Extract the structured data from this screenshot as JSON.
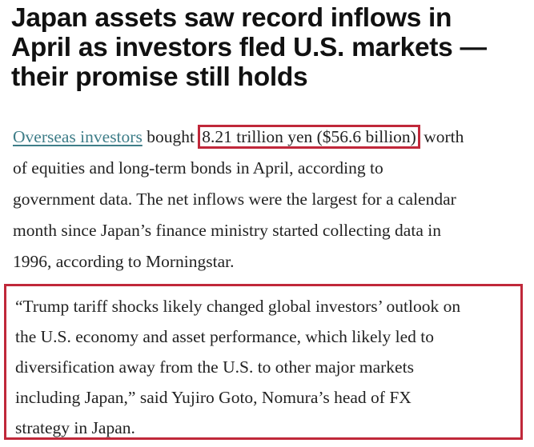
{
  "headline": {
    "lines": [
      "Japan assets saw record inflows in",
      "April as investors fled U.S. markets —",
      "their promise still holds"
    ]
  },
  "paragraph": {
    "link_text": "Overseas investors",
    "line1_after_link": " bought ",
    "highlight": "8.21 trillion yen ($56.6 billion)",
    "line1_end": " worth",
    "lines": [
      "of equities and long-term bonds in April, according to",
      "government data. The net inflows were the largest for a calendar",
      "month since Japan’s finance ministry started collecting data in",
      "1996, according to Morningstar."
    ]
  },
  "quote": {
    "lines": [
      "“Trump tariff shocks likely changed global investors’ outlook on",
      "the U.S. economy and asset performance, which likely led to",
      "diversification away from the U.S. to other major markets",
      "including Japan,” said Yujiro Goto, Nomura’s head of FX",
      "strategy in Japan."
    ]
  },
  "colors": {
    "link": "#3e7d88",
    "highlight_border": "#c0283a",
    "text": "#222222"
  }
}
